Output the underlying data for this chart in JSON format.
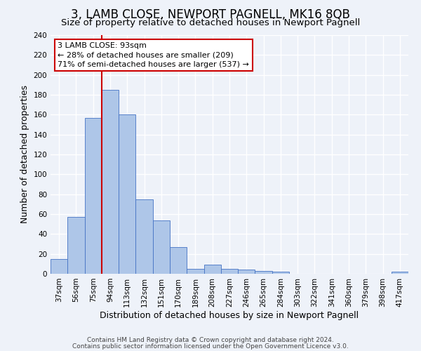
{
  "title": "3, LAMB CLOSE, NEWPORT PAGNELL, MK16 8QB",
  "subtitle": "Size of property relative to detached houses in Newport Pagnell",
  "xlabel": "Distribution of detached houses by size in Newport Pagnell",
  "ylabel": "Number of detached properties",
  "bar_labels": [
    "37sqm",
    "56sqm",
    "75sqm",
    "94sqm",
    "113sqm",
    "132sqm",
    "151sqm",
    "170sqm",
    "189sqm",
    "208sqm",
    "227sqm",
    "246sqm",
    "265sqm",
    "284sqm",
    "303sqm",
    "322sqm",
    "341sqm",
    "360sqm",
    "379sqm",
    "398sqm",
    "417sqm"
  ],
  "bar_values": [
    15,
    57,
    157,
    185,
    160,
    75,
    54,
    27,
    5,
    9,
    5,
    4,
    3,
    2,
    0,
    0,
    0,
    0,
    0,
    0,
    2
  ],
  "bar_color": "#aec6e8",
  "bar_edge_color": "#4472c4",
  "ylim": [
    0,
    240
  ],
  "yticks": [
    0,
    20,
    40,
    60,
    80,
    100,
    120,
    140,
    160,
    180,
    200,
    220,
    240
  ],
  "vline_x": 3,
  "vline_color": "#cc0000",
  "annotation_title": "3 LAMB CLOSE: 93sqm",
  "annotation_line1": "← 28% of detached houses are smaller (209)",
  "annotation_line2": "71% of semi-detached houses are larger (537) →",
  "annotation_box_color": "#cc0000",
  "footer_line1": "Contains HM Land Registry data © Crown copyright and database right 2024.",
  "footer_line2": "Contains public sector information licensed under the Open Government Licence v3.0.",
  "background_color": "#eef2f9",
  "grid_color": "#ffffff",
  "title_fontsize": 12,
  "subtitle_fontsize": 9.5,
  "axis_label_fontsize": 9,
  "tick_fontsize": 7.5,
  "footer_fontsize": 6.5,
  "ann_fontsize": 8
}
